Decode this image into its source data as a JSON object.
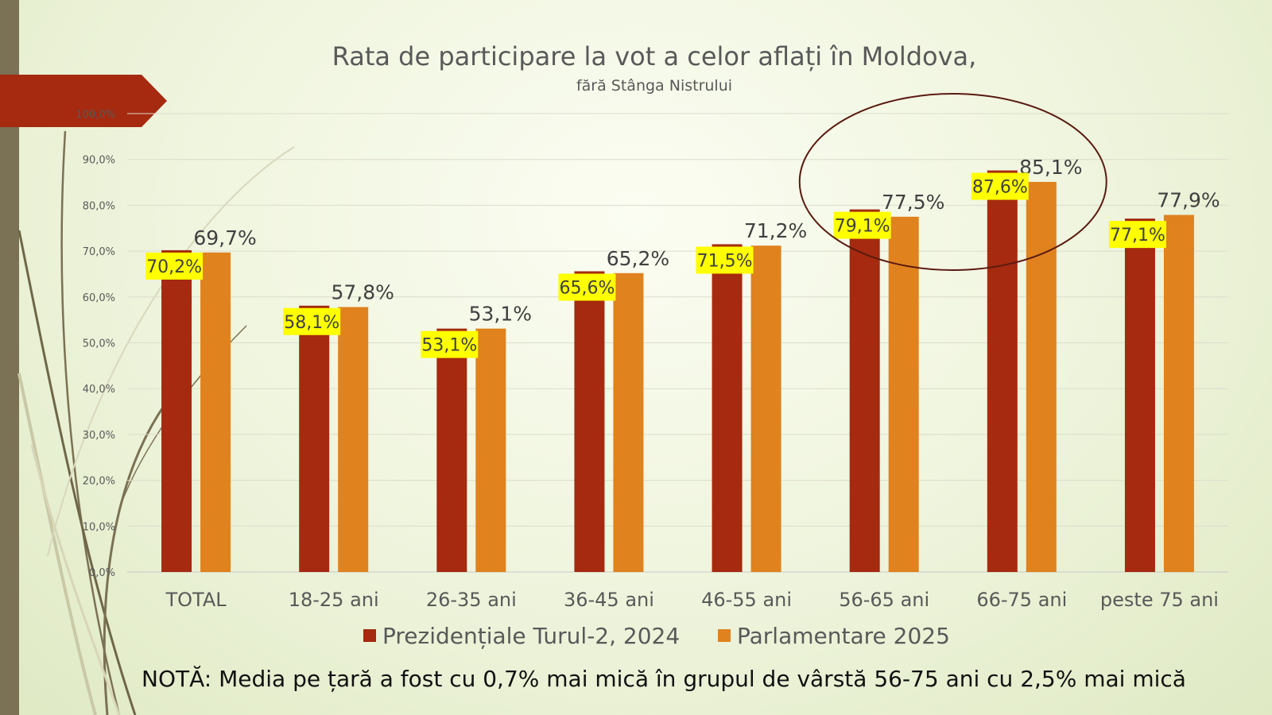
{
  "chart_data": {
    "type": "bar",
    "title": "Rata de participare la vot a celor aflați în Moldova,",
    "subtitle": "fără Stânga Nistrului",
    "categories": [
      "TOTAL",
      "18-25 ani",
      "26-35 ani",
      "36-45 ani",
      "46-55 ani",
      "56-65 ani",
      "66-75 ani",
      "peste 75 ani"
    ],
    "series": [
      {
        "name": "Prezidențiale Turul-2, 2024",
        "color": "#a52a0f",
        "values": [
          70.2,
          58.1,
          53.1,
          65.6,
          71.5,
          79.1,
          87.6,
          77.1
        ],
        "labels": [
          "70,2%",
          "58,1%",
          "53,1%",
          "65,6%",
          "71,5%",
          "79,1%",
          "87,6%",
          "77,1%"
        ]
      },
      {
        "name": "Parlamentare 2025",
        "color": "#e0821e",
        "values": [
          69.7,
          57.8,
          53.1,
          65.2,
          71.2,
          77.5,
          85.1,
          77.9
        ],
        "labels": [
          "69,7%",
          "57,8%",
          "53,1%",
          "65,2%",
          "71,2%",
          "77,5%",
          "85,1%",
          "77,9%"
        ]
      }
    ],
    "y_ticks": [
      "0,0%",
      "10,0%",
      "20,0%",
      "30,0%",
      "40,0%",
      "50,0%",
      "60,0%",
      "70,0%",
      "80,0%",
      "90,0%",
      "100,0%"
    ],
    "ylim": [
      0,
      100
    ],
    "grid": true,
    "legend_position": "bottom",
    "label_highlight_color": "#ffff00",
    "annotation": "circle around 56-65 ani and 66-75 ani groups"
  },
  "note": "NOTĂ: Media pe țară a fost cu 0,7% mai mică în grupul de vârstă 56-75 ani cu 2,5% mai mică"
}
